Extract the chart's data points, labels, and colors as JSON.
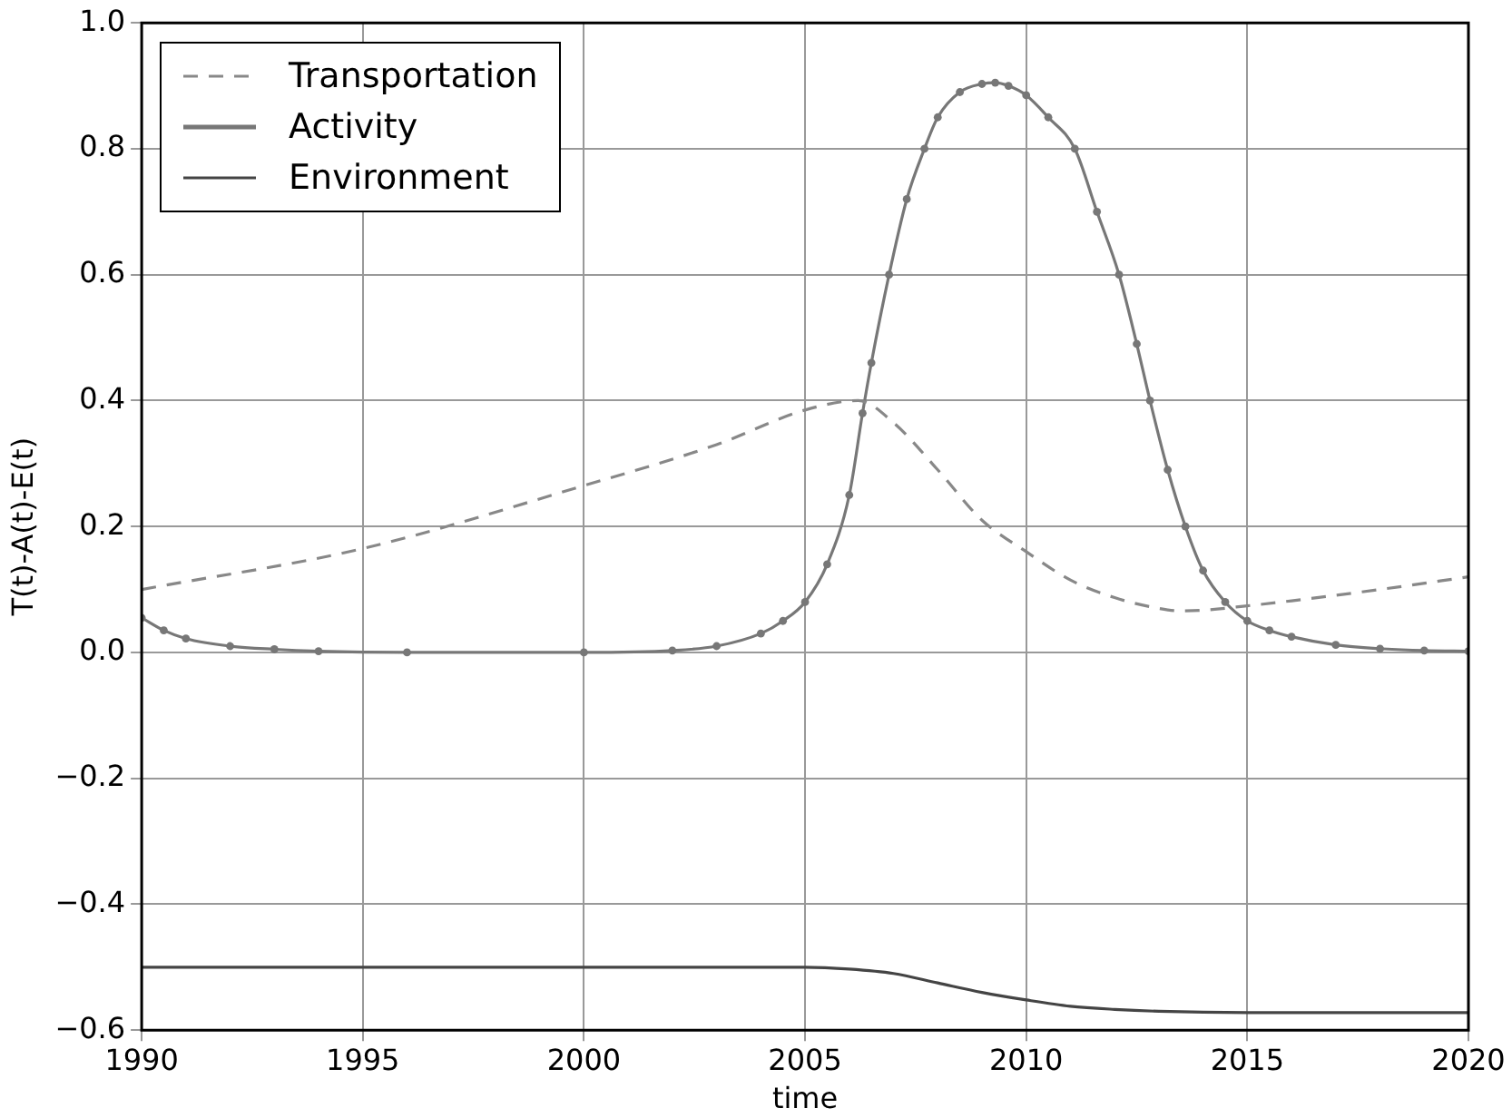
{
  "chart_data": {
    "type": "line",
    "xlabel": "time",
    "ylabel": "T(t)-A(t)-E(t)",
    "xlim": [
      1990,
      2020
    ],
    "xticks": [
      1990,
      1995,
      2000,
      2005,
      2010,
      2015,
      2020
    ],
    "ylim": [
      -0.6,
      1.0
    ],
    "yticks": [
      {
        "value": -0.6,
        "label": "−0.6"
      },
      {
        "value": -0.4,
        "label": "−0.4"
      },
      {
        "value": -0.2,
        "label": "−0.2"
      },
      {
        "value": 0,
        "label": "0.0"
      },
      0.2,
      0.4,
      0.6,
      0.8,
      {
        "value": 1.0,
        "label": "1.0"
      }
    ],
    "grid": true,
    "legend": "top left",
    "series": [
      {
        "name": "Transportation",
        "color": "#888888",
        "line_style": "dashed",
        "marker": "none",
        "x": [
          1990,
          1995,
          2000,
          2003,
          2005,
          2006.2,
          2007,
          2008,
          2009,
          2010,
          2011,
          2012,
          2013,
          2013.5,
          2014,
          2015,
          2016,
          2018,
          2020
        ],
        "values": [
          0.1,
          0.165,
          0.265,
          0.33,
          0.385,
          0.4,
          0.365,
          0.29,
          0.21,
          0.16,
          0.115,
          0.087,
          0.07,
          0.066,
          0.067,
          0.074,
          0.082,
          0.1,
          0.12
        ]
      },
      {
        "name": "Activity",
        "color": "#777777",
        "line_style": "solid",
        "marker": "circle",
        "x": [
          1990,
          1990.5,
          1991,
          1992,
          1993,
          1994,
          1996,
          2000,
          2002,
          2003,
          2004,
          2004.5,
          2005,
          2005.5,
          2006,
          2006.3,
          2006.5,
          2006.9,
          2007.3,
          2007.7,
          2008,
          2008.5,
          2009,
          2009.3,
          2009.6,
          2010,
          2010.5,
          2011.1,
          2011.6,
          2012.1,
          2012.5,
          2012.8,
          2013.2,
          2013.6,
          2014,
          2014.5,
          2015,
          2015.5,
          2016,
          2017,
          2018,
          2019,
          2020
        ],
        "values": [
          0.055,
          0.035,
          0.022,
          0.01,
          0.005,
          0.002,
          0,
          0,
          0.003,
          0.01,
          0.03,
          0.05,
          0.08,
          0.14,
          0.25,
          0.38,
          0.46,
          0.6,
          0.72,
          0.8,
          0.85,
          0.89,
          0.903,
          0.905,
          0.9,
          0.885,
          0.85,
          0.8,
          0.7,
          0.6,
          0.49,
          0.4,
          0.29,
          0.2,
          0.13,
          0.08,
          0.05,
          0.035,
          0.025,
          0.012,
          0.006,
          0.003,
          0.002
        ]
      },
      {
        "name": "Environment",
        "color": "#444444",
        "line_style": "solid",
        "marker": "none",
        "x": [
          1990,
          2000,
          2005,
          2006,
          2007,
          2008,
          2009,
          2010,
          2011,
          2012,
          2013,
          2015,
          2020
        ],
        "values": [
          -0.5,
          -0.5,
          -0.5,
          -0.503,
          -0.51,
          -0.525,
          -0.54,
          -0.552,
          -0.562,
          -0.567,
          -0.57,
          -0.572,
          -0.572
        ]
      }
    ]
  }
}
